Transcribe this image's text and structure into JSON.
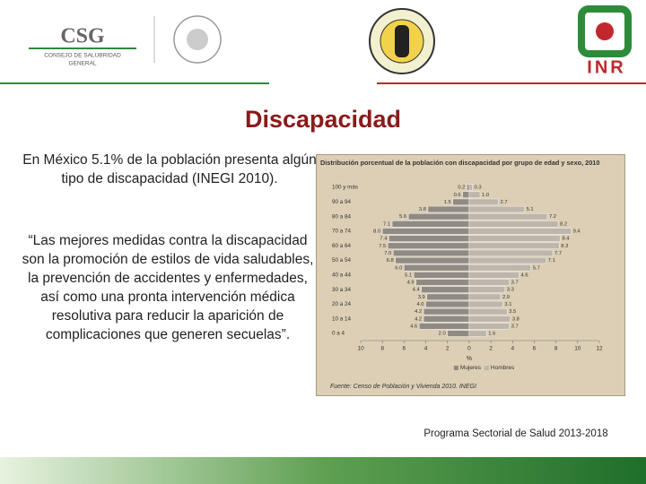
{
  "header": {
    "csg_logo": "CSG",
    "csg_name": "CONSEJO DE SALUBRIDAD",
    "csg_name2": "GENERAL",
    "inr_logo": "INR"
  },
  "title": "Discapacidad",
  "paragraph": "En México 5.1% de la población presenta algún tipo de discapacidad (INEGI 2010).",
  "quote": "“Las mejores medidas contra la discapacidad son la promoción de estilos de vida saludables, la prevención de accidentes y enfermedades, así como una pronta intervención médica resolutiva para reducir la aparición de complicaciones que generen secuelas”.",
  "footer": "Programa Sectorial de Salud 2013-2018",
  "chart_data": {
    "type": "pyramid",
    "title": "Distribución porcentual de la población con discapacidad por grupo de edad y sexo, 2010",
    "source": "Fuente: Censo de Población y Vivienda 2010. INEGI",
    "x_label": "%",
    "categories": [
      "100 y más",
      null,
      "90 a 94",
      null,
      "80 a 84",
      null,
      "70 a 74",
      null,
      "60 a 64",
      null,
      "50 a 54",
      null,
      "40 a 44",
      null,
      "30 a 34",
      null,
      "20 a 24",
      null,
      "10 a 14",
      null,
      "0 a 4"
    ],
    "series": [
      {
        "name": "Mujeres",
        "color": "#8f8a84",
        "side": "left",
        "values": [
          0.2,
          0.6,
          1.5,
          3.8,
          5.6,
          7.1,
          8.0,
          7.4,
          7.5,
          7.0,
          6.8,
          6.0,
          5.1,
          4.9,
          4.4,
          3.9,
          4.0,
          4.2,
          4.2,
          4.6,
          2.0
        ],
        "value_labels": [
          "0.2",
          "0.6",
          "1.5",
          "3.8",
          "5.6",
          "7.1",
          "8.0",
          "7.4",
          "7.5",
          "7.0",
          "6.8",
          "6.0",
          "5.1",
          "4.9",
          "4.4",
          "3.9",
          "4.0",
          "4.2",
          "4.2",
          "4.6",
          "2.0"
        ]
      },
      {
        "name": "Hombres",
        "color": "#bdb6ac",
        "side": "right",
        "values": [
          0.3,
          1.0,
          2.7,
          5.1,
          7.2,
          8.2,
          9.4,
          8.4,
          8.3,
          7.7,
          7.1,
          5.7,
          4.6,
          3.7,
          3.3,
          2.9,
          3.1,
          3.5,
          3.8,
          3.7,
          1.6
        ],
        "value_labels": [
          "0.3",
          "1.0",
          "2.7",
          "5.1",
          "7.2",
          "8.2",
          "9.4",
          "8.4",
          "8.3",
          "7.7",
          "7.1",
          "5.7",
          "4.6",
          "3.7",
          "3.3",
          "2.9",
          "3.1",
          "3.5",
          "3.8",
          "3.7",
          "1.6"
        ]
      }
    ],
    "xlim": [
      -10,
      12
    ],
    "xticks": [
      {
        "value": -10,
        "label": "10"
      },
      {
        "value": -8,
        "label": "8"
      },
      {
        "value": -6,
        "label": "6"
      },
      {
        "value": -4,
        "label": "4"
      },
      {
        "value": -2,
        "label": "2"
      },
      0,
      2,
      4,
      6,
      8,
      10,
      12
    ],
    "legend": "bottom"
  }
}
